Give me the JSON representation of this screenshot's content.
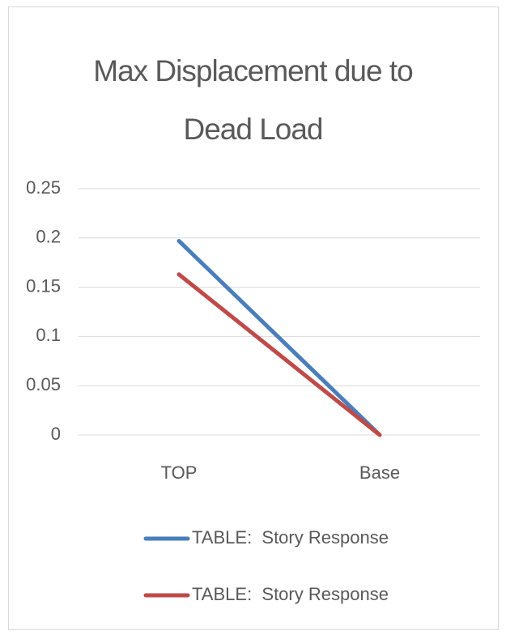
{
  "chart_data": {
    "type": "line",
    "title": "Max Displacement due to Dead Load",
    "categories": [
      "TOP",
      "Base"
    ],
    "series": [
      {
        "name": "TABLE:  Story Response",
        "color": "#4a7ebb",
        "values": [
          0.197,
          0
        ]
      },
      {
        "name": "TABLE:  Story Response",
        "color": "#be4b48",
        "values": [
          0.163,
          0
        ]
      }
    ],
    "ylim": [
      0,
      0.25
    ],
    "yticks": [
      0,
      0.05,
      0.1,
      0.15,
      0.2,
      0.25
    ],
    "grid": true,
    "legend": "bottom"
  }
}
